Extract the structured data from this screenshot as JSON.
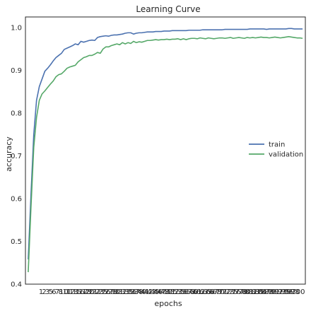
{
  "chart_data": {
    "type": "line",
    "title": "Learning Curve",
    "xlabel": "epochs",
    "ylabel": "accuracy",
    "xlim": [
      0,
      101
    ],
    "ylim": [
      0.4,
      1.025
    ],
    "yticks": [
      0.4,
      0.5,
      0.6,
      0.7,
      0.8,
      0.9,
      1.0
    ],
    "ytick_labels": [
      "0.4",
      "0.5",
      "0.6",
      "0.7",
      "0.8",
      "0.9",
      "1.0"
    ],
    "xticks": [
      1,
      2,
      3,
      5,
      6,
      7,
      8,
      10,
      11,
      12,
      13,
      15,
      16,
      17,
      18,
      20,
      21,
      22,
      23,
      25,
      26,
      27,
      28,
      30,
      31,
      32,
      33,
      35,
      36,
      37,
      38,
      40,
      41,
      42,
      43,
      45,
      46,
      47,
      48,
      50,
      51,
      52,
      53,
      55,
      56,
      57,
      58,
      60,
      61,
      62,
      63,
      65,
      66,
      67,
      68,
      70,
      71,
      72,
      73,
      75,
      76,
      77,
      78,
      80,
      81,
      82,
      83,
      85,
      86,
      87,
      88,
      90,
      91,
      92,
      93,
      95,
      96,
      97,
      98,
      100
    ],
    "legend_position": "center-right",
    "grid": false,
    "x": [
      1,
      2,
      3,
      4,
      5,
      6,
      7,
      8,
      9,
      10,
      11,
      12,
      13,
      14,
      15,
      16,
      17,
      18,
      19,
      20,
      21,
      22,
      23,
      24,
      25,
      26,
      27,
      28,
      29,
      30,
      31,
      32,
      33,
      34,
      35,
      36,
      37,
      38,
      39,
      40,
      41,
      42,
      43,
      44,
      45,
      46,
      47,
      48,
      49,
      50,
      51,
      52,
      53,
      54,
      55,
      56,
      57,
      58,
      59,
      60,
      61,
      62,
      63,
      64,
      65,
      66,
      67,
      68,
      69,
      70,
      71,
      72,
      73,
      74,
      75,
      76,
      77,
      78,
      79,
      80,
      81,
      82,
      83,
      84,
      85,
      86,
      87,
      88,
      89,
      90,
      91,
      92,
      93,
      94,
      95,
      96,
      97,
      98,
      99,
      100
    ],
    "series": [
      {
        "name": "train",
        "color": "#4c72b0",
        "values": [
          0.458,
          0.61,
          0.75,
          0.83,
          0.862,
          0.88,
          0.898,
          0.905,
          0.913,
          0.922,
          0.93,
          0.935,
          0.94,
          0.949,
          0.952,
          0.955,
          0.958,
          0.962,
          0.96,
          0.968,
          0.966,
          0.968,
          0.97,
          0.971,
          0.97,
          0.977,
          0.979,
          0.98,
          0.981,
          0.98,
          0.982,
          0.983,
          0.983,
          0.984,
          0.985,
          0.987,
          0.988,
          0.988,
          0.985,
          0.987,
          0.988,
          0.988,
          0.989,
          0.99,
          0.99,
          0.99,
          0.991,
          0.991,
          0.991,
          0.992,
          0.992,
          0.992,
          0.993,
          0.993,
          0.993,
          0.993,
          0.993,
          0.993,
          0.994,
          0.994,
          0.994,
          0.994,
          0.994,
          0.995,
          0.995,
          0.995,
          0.995,
          0.995,
          0.995,
          0.995,
          0.995,
          0.996,
          0.996,
          0.996,
          0.996,
          0.996,
          0.996,
          0.996,
          0.996,
          0.996,
          0.997,
          0.997,
          0.997,
          0.997,
          0.997,
          0.997,
          0.996,
          0.997,
          0.997,
          0.997,
          0.997,
          0.997,
          0.997,
          0.997,
          0.998,
          0.998,
          0.997,
          0.997,
          0.997,
          0.997
        ]
      },
      {
        "name": "validation",
        "color": "#55a868",
        "values": [
          0.428,
          0.58,
          0.72,
          0.79,
          0.83,
          0.845,
          0.852,
          0.86,
          0.868,
          0.875,
          0.885,
          0.89,
          0.892,
          0.898,
          0.905,
          0.908,
          0.91,
          0.912,
          0.92,
          0.925,
          0.93,
          0.932,
          0.935,
          0.935,
          0.938,
          0.942,
          0.94,
          0.95,
          0.955,
          0.955,
          0.958,
          0.96,
          0.962,
          0.96,
          0.965,
          0.962,
          0.965,
          0.963,
          0.968,
          0.965,
          0.967,
          0.966,
          0.968,
          0.97,
          0.97,
          0.971,
          0.972,
          0.971,
          0.972,
          0.972,
          0.973,
          0.972,
          0.973,
          0.973,
          0.974,
          0.972,
          0.974,
          0.972,
          0.974,
          0.975,
          0.975,
          0.974,
          0.976,
          0.975,
          0.974,
          0.976,
          0.975,
          0.974,
          0.975,
          0.976,
          0.976,
          0.975,
          0.976,
          0.977,
          0.975,
          0.976,
          0.977,
          0.976,
          0.975,
          0.977,
          0.976,
          0.977,
          0.976,
          0.977,
          0.978,
          0.977,
          0.977,
          0.976,
          0.977,
          0.978,
          0.977,
          0.976,
          0.977,
          0.978,
          0.979,
          0.978,
          0.977,
          0.976,
          0.976,
          0.975
        ]
      }
    ]
  }
}
